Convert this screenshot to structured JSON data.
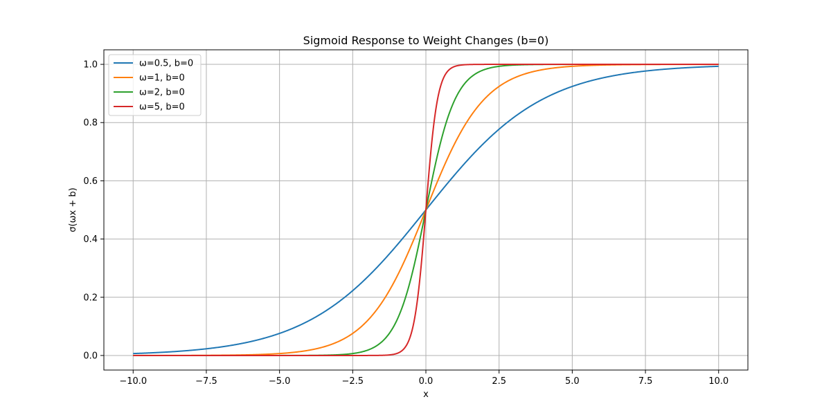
{
  "chart_data": {
    "type": "line",
    "title": "Sigmoid Response to Weight Changes (b=0)",
    "xlabel": "x",
    "ylabel": "σ(ωx + b)",
    "xlim": [
      -11,
      11
    ],
    "ylim": [
      -0.05,
      1.05
    ],
    "x_range": [
      -10,
      10
    ],
    "x_ticks": [
      -10.0,
      -7.5,
      -5.0,
      -2.5,
      0.0,
      2.5,
      5.0,
      7.5,
      10.0
    ],
    "x_tick_labels": [
      "−10.0",
      "−7.5",
      "−5.0",
      "−2.5",
      "0.0",
      "2.5",
      "5.0",
      "7.5",
      "10.0"
    ],
    "y_ticks": [
      0.0,
      0.2,
      0.4,
      0.6,
      0.8,
      1.0
    ],
    "y_tick_labels": [
      "0.0",
      "0.2",
      "0.4",
      "0.6",
      "0.8",
      "1.0"
    ],
    "grid": true,
    "legend_position": "upper-left",
    "series": [
      {
        "name": "ω=0.5, b=0",
        "weight": 0.5,
        "bias": 0,
        "color": "#1f77b4"
      },
      {
        "name": "ω=1, b=0",
        "weight": 1,
        "bias": 0,
        "color": "#ff7f0e"
      },
      {
        "name": "ω=2, b=0",
        "weight": 2,
        "bias": 0,
        "color": "#2ca02c"
      },
      {
        "name": "ω=5, b=0",
        "weight": 5,
        "bias": 0,
        "color": "#d62728"
      }
    ]
  }
}
